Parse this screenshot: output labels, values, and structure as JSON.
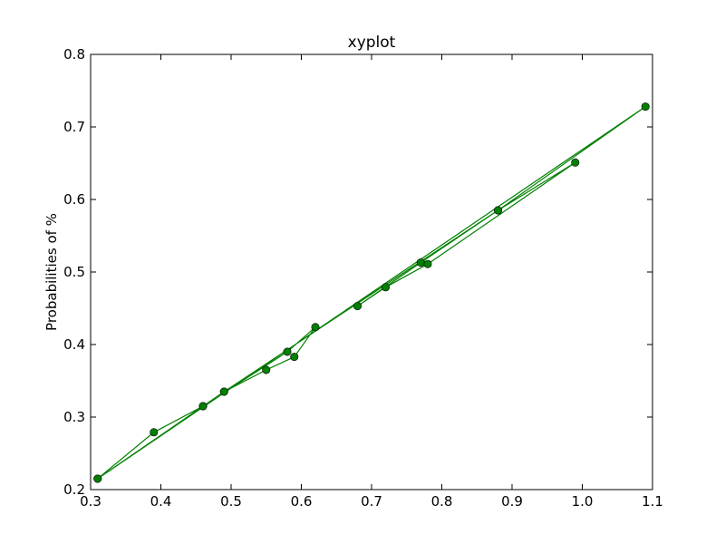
{
  "chart_data": {
    "type": "line",
    "title": "xyplot",
    "xlabel": "",
    "ylabel": "Probabilities of %",
    "xlim": [
      0.3,
      1.1
    ],
    "ylim": [
      0.2,
      0.8
    ],
    "xticks": [
      "0.3",
      "0.4",
      "0.5",
      "0.6",
      "0.7",
      "0.8",
      "0.9",
      "1.0",
      "1.1"
    ],
    "yticks": [
      "0.2",
      "0.3",
      "0.4",
      "0.5",
      "0.6",
      "0.7",
      "0.8"
    ],
    "grid": false,
    "legend": "none",
    "series": [
      {
        "color": "#008000",
        "marker": "circle",
        "points": [
          {
            "x": 0.31,
            "y": 0.215
          },
          {
            "x": 0.39,
            "y": 0.279
          },
          {
            "x": 0.46,
            "y": 0.315
          },
          {
            "x": 0.49,
            "y": 0.335
          },
          {
            "x": 0.55,
            "y": 0.365
          },
          {
            "x": 0.59,
            "y": 0.383
          },
          {
            "x": 0.62,
            "y": 0.424
          },
          {
            "x": 0.58,
            "y": 0.39
          },
          {
            "x": 0.46,
            "y": 0.315
          },
          {
            "x": 0.31,
            "y": 0.215
          },
          {
            "x": 1.09,
            "y": 0.728
          },
          {
            "x": 0.88,
            "y": 0.585
          },
          {
            "x": 0.77,
            "y": 0.513
          },
          {
            "x": 0.68,
            "y": 0.453
          },
          {
            "x": 0.72,
            "y": 0.479
          },
          {
            "x": 0.78,
            "y": 0.511
          },
          {
            "x": 0.99,
            "y": 0.651
          },
          {
            "x": 0.88,
            "y": 0.585
          },
          {
            "x": 0.49,
            "y": 0.335
          }
        ]
      }
    ]
  }
}
